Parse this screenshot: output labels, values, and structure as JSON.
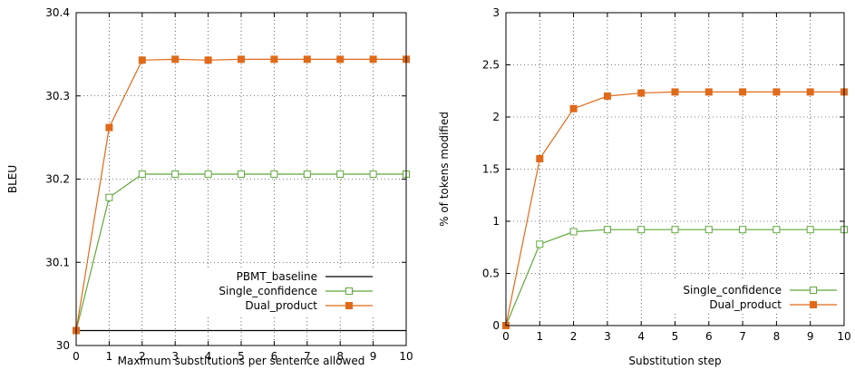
{
  "colors": {
    "single_confidence": "#5fa83a",
    "dual_product": "#e06a1a",
    "baseline": "#000000"
  },
  "chart_data": [
    {
      "type": "line",
      "xlabel": "Maximum substitutions per sentence allowed",
      "ylabel": "BLEU",
      "xlim": [
        0,
        10
      ],
      "ylim": [
        30,
        30.4
      ],
      "x_ticks": [
        "0",
        "1",
        "2",
        "3",
        "4",
        "5",
        "6",
        "7",
        "8",
        "9",
        "10"
      ],
      "y_ticks": [
        "30",
        "30.1",
        "30.2",
        "30.3",
        "30.4"
      ],
      "grid": true,
      "legend": "bottom-right",
      "x": [
        0,
        1,
        2,
        3,
        4,
        5,
        6,
        7,
        8,
        9,
        10
      ],
      "series": [
        {
          "name": "PBMT_baseline",
          "marker": "none",
          "values": [
            30.018,
            30.018,
            30.018,
            30.018,
            30.018,
            30.018,
            30.018,
            30.018,
            30.018,
            30.018,
            30.018
          ]
        },
        {
          "name": "Single_confidence",
          "marker": "open-square",
          "values": [
            30.018,
            30.178,
            30.206,
            30.206,
            30.206,
            30.206,
            30.206,
            30.206,
            30.206,
            30.206,
            30.206
          ]
        },
        {
          "name": "Dual_product",
          "marker": "filled-square",
          "values": [
            30.018,
            30.262,
            30.343,
            30.344,
            30.343,
            30.344,
            30.344,
            30.344,
            30.344,
            30.344,
            30.344
          ]
        }
      ]
    },
    {
      "type": "line",
      "xlabel": "Substitution step",
      "ylabel": "% of tokens modified",
      "xlim": [
        0,
        10
      ],
      "ylim": [
        0,
        3
      ],
      "x_ticks": [
        "0",
        "1",
        "2",
        "3",
        "4",
        "5",
        "6",
        "7",
        "8",
        "9",
        "10"
      ],
      "y_ticks": [
        "0",
        "0.5",
        "1",
        "1.5",
        "2",
        "2.5",
        "3"
      ],
      "grid": true,
      "legend": "bottom-right",
      "x": [
        0,
        1,
        2,
        3,
        4,
        5,
        6,
        7,
        8,
        9,
        10
      ],
      "series": [
        {
          "name": "Single_confidence",
          "marker": "open-square",
          "values": [
            0,
            0.78,
            0.9,
            0.92,
            0.92,
            0.92,
            0.92,
            0.92,
            0.92,
            0.92,
            0.92
          ]
        },
        {
          "name": "Dual_product",
          "marker": "filled-square",
          "values": [
            0,
            1.6,
            2.08,
            2.2,
            2.23,
            2.24,
            2.24,
            2.24,
            2.24,
            2.24,
            2.24
          ]
        }
      ]
    }
  ]
}
